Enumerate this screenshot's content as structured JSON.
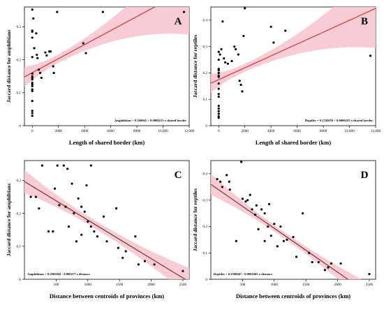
{
  "chart_data": [
    {
      "type": "scatter",
      "panel_label": "A",
      "xlabel": "Length of shared border (km)",
      "ylabel": "Jaccard distance for amphibians",
      "xlim": [
        -600,
        12000
      ],
      "ylim": [
        0,
        0.36
      ],
      "xticks": [
        0,
        2000,
        4000,
        6000,
        8000,
        10000,
        12000
      ],
      "xtick_labels": [
        "0",
        "2000",
        "4000",
        "6000",
        "8000",
        "10,000",
        "12,000"
      ],
      "yticks": [
        0,
        0.1,
        0.2,
        0.3
      ],
      "ytick_labels": [
        "0",
        "0.1",
        "0.2",
        "0.3"
      ],
      "equation": "Amphibians = 0.160665 + 0.0000213 x shared border",
      "regression": {
        "intercept": 0.160665,
        "slope": 2.13e-05,
        "ci_half_width_at_xmin": 0.03,
        "ci_half_width_at_xmax": 0.14,
        "ci_half_width_min": 0.013,
        "ci_center_x": 1800
      },
      "points": [
        [
          0,
          0.352
        ],
        [
          0,
          0.288
        ],
        [
          0,
          0.285
        ],
        [
          0,
          0.267
        ],
        [
          0,
          0.208
        ],
        [
          0,
          0.158
        ],
        [
          0,
          0.15
        ],
        [
          0,
          0.145
        ],
        [
          0,
          0.14
        ],
        [
          0,
          0.13
        ],
        [
          0,
          0.125
        ],
        [
          0,
          0.12
        ],
        [
          0,
          0.11
        ],
        [
          0,
          0.105
        ],
        [
          0,
          0.075
        ],
        [
          0,
          0.045
        ],
        [
          0,
          0.038
        ],
        [
          0,
          0.03
        ],
        [
          80,
          0.325
        ],
        [
          150,
          0.235
        ],
        [
          300,
          0.28
        ],
        [
          350,
          0.215
        ],
        [
          400,
          0.205
        ],
        [
          500,
          0.17
        ],
        [
          600,
          0.16
        ],
        [
          700,
          0.145
        ],
        [
          1000,
          0.222
        ],
        [
          1100,
          0.213
        ],
        [
          1300,
          0.225
        ],
        [
          1400,
          0.225
        ],
        [
          1600,
          0.18
        ],
        [
          1650,
          0.16
        ],
        [
          1900,
          0.345
        ],
        [
          3900,
          0.25
        ],
        [
          4100,
          0.22
        ],
        [
          5400,
          0.345
        ],
        [
          11600,
          0.345
        ]
      ]
    },
    {
      "type": "scatter",
      "panel_label": "B",
      "xlabel": "Length of shared border (km)",
      "ylabel": "Jaccard distance for reptiles",
      "xlim": [
        -600,
        12000
      ],
      "ylim": [
        0,
        0.45
      ],
      "xticks": [
        0,
        2000,
        4000,
        6000,
        8000,
        10000,
        12000
      ],
      "xtick_labels": [
        "0",
        "2000",
        "4000",
        "6000",
        "8000",
        "10,000",
        "12,000"
      ],
      "yticks": [
        0,
        0.1,
        0.2,
        0.3,
        0.4
      ],
      "ytick_labels": [
        "0",
        "0.1",
        "0.2",
        "0.3",
        "0.4"
      ],
      "equation": "Reptiles = 0.1745659 + 0.0000225 x shared border",
      "regression": {
        "intercept": 0.1745659,
        "slope": 2.25e-05,
        "ci_half_width_at_xmin": 0.035,
        "ci_half_width_at_xmax": 0.15,
        "ci_half_width_min": 0.015,
        "ci_center_x": 1800
      },
      "points": [
        [
          0,
          0.28
        ],
        [
          0,
          0.25
        ],
        [
          0,
          0.215
        ],
        [
          0,
          0.21
        ],
        [
          0,
          0.2
        ],
        [
          0,
          0.19
        ],
        [
          0,
          0.185
        ],
        [
          0,
          0.16
        ],
        [
          0,
          0.14
        ],
        [
          0,
          0.12
        ],
        [
          0,
          0.11
        ],
        [
          0,
          0.075
        ],
        [
          0,
          0.065
        ],
        [
          0,
          0.055
        ],
        [
          0,
          0.045
        ],
        [
          0,
          0.035
        ],
        [
          0,
          0.03
        ],
        [
          100,
          0.27
        ],
        [
          200,
          0.29
        ],
        [
          300,
          0.395
        ],
        [
          400,
          0.255
        ],
        [
          500,
          0.24
        ],
        [
          700,
          0.235
        ],
        [
          1000,
          0.245
        ],
        [
          1200,
          0.3
        ],
        [
          1300,
          0.29
        ],
        [
          1500,
          0.27
        ],
        [
          1600,
          0.17
        ],
        [
          1700,
          0.155
        ],
        [
          1800,
          0.13
        ],
        [
          1900,
          0.34
        ],
        [
          2000,
          0.445
        ],
        [
          4000,
          0.375
        ],
        [
          4200,
          0.315
        ],
        [
          5100,
          0.36
        ],
        [
          11600,
          0.265
        ]
      ]
    },
    {
      "type": "scatter",
      "panel_label": "C",
      "xlabel": "Distance between centroids of provinces (km)",
      "ylabel": "Jaccard distance for amphibians",
      "xlim": [
        0,
        2600
      ],
      "ylim": [
        0,
        0.36
      ],
      "xticks": [
        500,
        1000,
        1500,
        2000,
        2500
      ],
      "xtick_labels": [
        "500",
        "1000",
        "1500",
        "2000",
        "2500"
      ],
      "yticks": [
        0,
        0.1,
        0.2,
        0.3
      ],
      "ytick_labels": [
        "0",
        "0.1",
        "0.2",
        "0.3"
      ],
      "equation": "Amphibians = 0.2965842 - 0.000117 x distance",
      "regression": {
        "intercept": 0.2965842,
        "slope": -0.000117,
        "ci_half_width_at_xmin": 0.035,
        "ci_half_width_at_xmax": 0.042,
        "ci_half_width_min": 0.012,
        "ci_center_x": 1100
      },
      "points": [
        [
          100,
          0.25
        ],
        [
          180,
          0.25
        ],
        [
          230,
          0.215
        ],
        [
          280,
          0.345
        ],
        [
          380,
          0.145
        ],
        [
          450,
          0.145
        ],
        [
          480,
          0.275
        ],
        [
          520,
          0.345
        ],
        [
          550,
          0.225
        ],
        [
          620,
          0.345
        ],
        [
          650,
          0.22
        ],
        [
          680,
          0.335
        ],
        [
          700,
          0.16
        ],
        [
          750,
          0.29
        ],
        [
          780,
          0.2
        ],
        [
          820,
          0.115
        ],
        [
          850,
          0.245
        ],
        [
          900,
          0.22
        ],
        [
          900,
          0.135
        ],
        [
          950,
          0.205
        ],
        [
          980,
          0.285
        ],
        [
          1000,
          0.175
        ],
        [
          1050,
          0.345
        ],
        [
          1050,
          0.16
        ],
        [
          1100,
          0.145
        ],
        [
          1150,
          0.13
        ],
        [
          1250,
          0.19
        ],
        [
          1300,
          0.115
        ],
        [
          1450,
          0.215
        ],
        [
          1480,
          0.095
        ],
        [
          1550,
          0.065
        ],
        [
          1600,
          0.085
        ],
        [
          1750,
          0.13
        ],
        [
          1800,
          0.045
        ],
        [
          1900,
          0.055
        ],
        [
          2050,
          0.045
        ],
        [
          2500,
          0.025
        ]
      ]
    },
    {
      "type": "scatter",
      "panel_label": "D",
      "xlabel": "Distance between centroids of provinces (km)",
      "ylabel": "Jaccard distance for reptiles",
      "xlim": [
        0,
        2600
      ],
      "ylim": [
        0,
        0.45
      ],
      "xticks": [
        500,
        1000,
        1500,
        2000,
        2500
      ],
      "xtick_labels": [
        "500",
        "1000",
        "1500",
        "2000",
        "2500"
      ],
      "yticks": [
        0,
        0.1,
        0.2,
        0.3,
        0.4
      ],
      "ytick_labels": [
        "0",
        "0.1",
        "0.2",
        "0.3",
        "0.4"
      ],
      "equation": "Reptiles = 0.3598467 - 0.0001665 x distance",
      "regression": {
        "intercept": 0.3598467,
        "slope": -0.0001665,
        "ci_half_width_at_xmin": 0.04,
        "ci_half_width_at_xmax": 0.045,
        "ci_half_width_min": 0.012,
        "ci_center_x": 1100
      },
      "points": [
        [
          100,
          0.38
        ],
        [
          150,
          0.37
        ],
        [
          180,
          0.35
        ],
        [
          250,
          0.395
        ],
        [
          290,
          0.37
        ],
        [
          300,
          0.34
        ],
        [
          400,
          0.145
        ],
        [
          480,
          0.445
        ],
        [
          500,
          0.305
        ],
        [
          550,
          0.295
        ],
        [
          580,
          0.3
        ],
        [
          620,
          0.32
        ],
        [
          650,
          0.265
        ],
        [
          700,
          0.245
        ],
        [
          720,
          0.28
        ],
        [
          750,
          0.19
        ],
        [
          800,
          0.265
        ],
        [
          850,
          0.25
        ],
        [
          850,
          0.145
        ],
        [
          900,
          0.2
        ],
        [
          920,
          0.285
        ],
        [
          950,
          0.165
        ],
        [
          1000,
          0.21
        ],
        [
          1050,
          0.125
        ],
        [
          1100,
          0.2
        ],
        [
          1150,
          0.145
        ],
        [
          1200,
          0.15
        ],
        [
          1300,
          0.16
        ],
        [
          1350,
          0.085
        ],
        [
          1450,
          0.25
        ],
        [
          1550,
          0.1
        ],
        [
          1600,
          0.065
        ],
        [
          1700,
          0.065
        ],
        [
          1800,
          0.035
        ],
        [
          1850,
          0.045
        ],
        [
          1900,
          0.06
        ],
        [
          2050,
          0.06
        ],
        [
          2500,
          0.02
        ]
      ]
    }
  ]
}
